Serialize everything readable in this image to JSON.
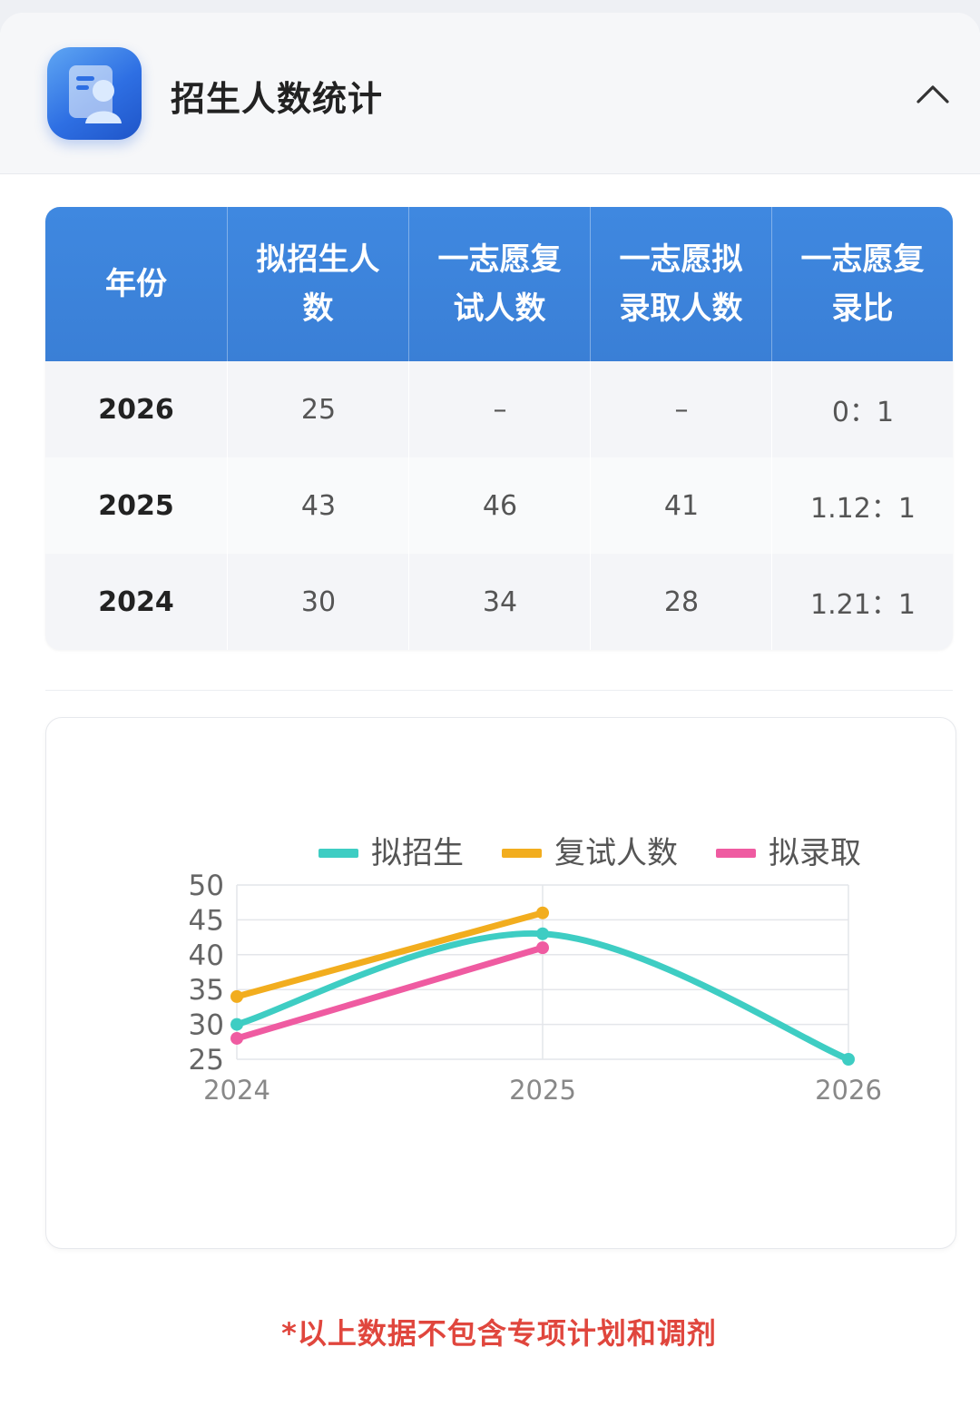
{
  "header": {
    "title": "招生人数统计",
    "icon": "admission-stats-icon",
    "collapse_icon": "chevron-up-icon"
  },
  "table": {
    "columns": [
      "年份",
      "拟招生人数",
      "一志愿复试人数",
      "一志愿拟录取人数",
      "一志愿复录比"
    ],
    "rows": [
      [
        "2026",
        "25",
        "–",
        "–",
        "0：1"
      ],
      [
        "2025",
        "43",
        "46",
        "41",
        "1.12：1"
      ],
      [
        "2024",
        "30",
        "34",
        "28",
        "1.21：1"
      ]
    ]
  },
  "chart_data": {
    "type": "line",
    "x": [
      "2024",
      "2025",
      "2026"
    ],
    "yticks": [
      "50",
      "45",
      "40",
      "35",
      "30",
      "25"
    ],
    "ylim": [
      25,
      50
    ],
    "grid": true,
    "legend_position": "top",
    "series": [
      {
        "name": "拟招生",
        "color": "#3ecdc3",
        "values": [
          30,
          43,
          25
        ],
        "smooth": true
      },
      {
        "name": "复试人数",
        "color": "#f2ad1e",
        "values": [
          34,
          46,
          null
        ],
        "smooth": false
      },
      {
        "name": "拟录取",
        "color": "#ef5ba1",
        "values": [
          28,
          41,
          null
        ],
        "smooth": false
      }
    ]
  },
  "footnote": "*以上数据不包含专项计划和调剂",
  "colors": {
    "accent": "#3a7fd6",
    "footnote": "#e0463d"
  }
}
